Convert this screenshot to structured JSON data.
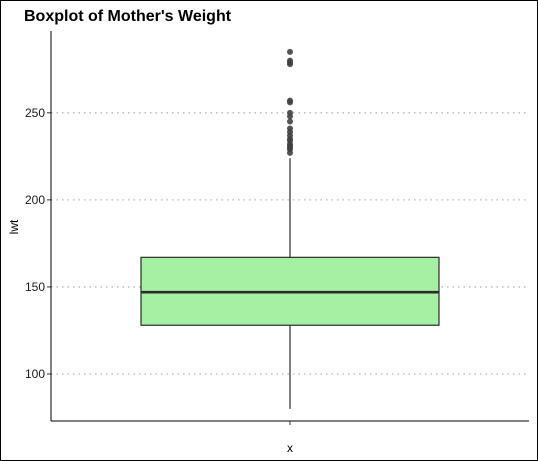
{
  "chart_data": {
    "type": "boxplot",
    "title": "Boxplot of Mother's Weight",
    "xlabel": "x",
    "ylabel": "lwt",
    "ylim": [
      73,
      297
    ],
    "y_ticks": [
      100,
      150,
      200,
      250
    ],
    "y_tick_labels": [
      "100",
      "150",
      "200",
      "250"
    ],
    "grid_major_y": true,
    "grid_style": "dotted",
    "box": {
      "q1": 128,
      "median": 147,
      "q3": 167,
      "whisker_low": 80,
      "whisker_high": 224
    },
    "outliers": [
      227,
      229,
      230,
      231,
      232,
      234,
      235,
      237,
      239,
      241,
      245,
      248,
      250,
      256,
      257,
      278,
      279,
      280,
      285
    ],
    "fill_color": "#a4f1a4",
    "stroke_color": "#2b2b2b",
    "point_color": "#404040"
  }
}
